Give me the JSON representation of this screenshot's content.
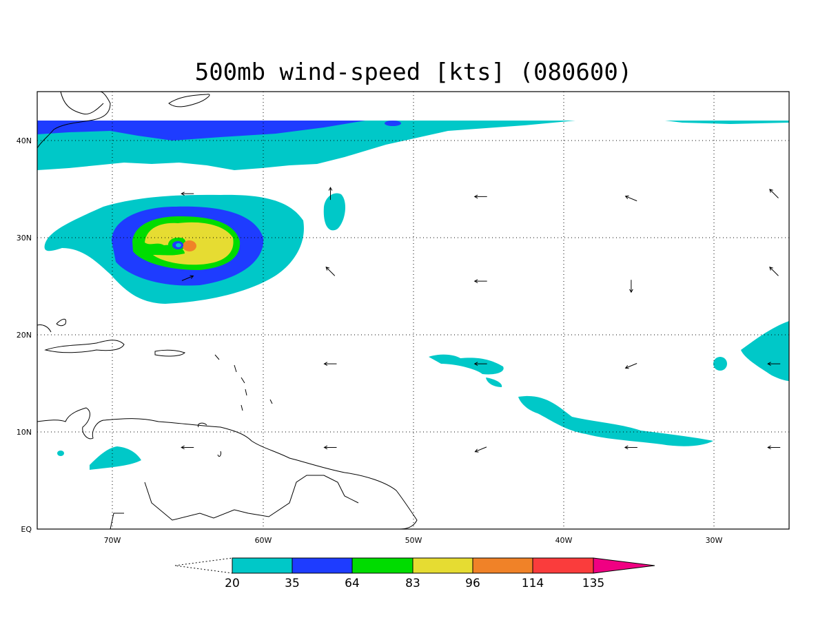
{
  "title": "500mb wind-speed [kts] (080600)",
  "map": {
    "lon_range": [
      -75,
      -25
    ],
    "lat_range": [
      0,
      45
    ],
    "x_ticks": [
      {
        "lon": -70,
        "label": "70W"
      },
      {
        "lon": -60,
        "label": "60W"
      },
      {
        "lon": -50,
        "label": "50W"
      },
      {
        "lon": -40,
        "label": "40W"
      },
      {
        "lon": -30,
        "label": "30W"
      }
    ],
    "y_ticks": [
      {
        "lat": 0,
        "label": "EQ"
      },
      {
        "lat": 10,
        "label": "10N"
      },
      {
        "lat": 20,
        "label": "20N"
      },
      {
        "lat": 30,
        "label": "30N"
      },
      {
        "lat": 40,
        "label": "40N"
      }
    ],
    "grid": true
  },
  "colorbar": {
    "levels": [
      "20",
      "35",
      "64",
      "83",
      "96",
      "114",
      "135"
    ],
    "colors": [
      "#00c8c8",
      "#1e3cff",
      "#00dc00",
      "#e6dc32",
      "#f08228",
      "#fa3c3c",
      "#f00082"
    ]
  },
  "wind_vectors": [
    {
      "lon": -65,
      "lat": 34.5,
      "dir": "W"
    },
    {
      "lon": -55.5,
      "lat": 34.5,
      "dir": "N"
    },
    {
      "lon": -45.5,
      "lat": 34.2,
      "dir": "W"
    },
    {
      "lon": -35.5,
      "lat": 34,
      "dir": "WNW"
    },
    {
      "lon": -26,
      "lat": 34.5,
      "dir": "NW"
    },
    {
      "lon": -55.5,
      "lat": 26.5,
      "dir": "NW"
    },
    {
      "lon": -45.5,
      "lat": 25.5,
      "dir": "W"
    },
    {
      "lon": -35.5,
      "lat": 25,
      "dir": "S"
    },
    {
      "lon": -26,
      "lat": 26.5,
      "dir": "NW"
    },
    {
      "lon": -65,
      "lat": 25.8,
      "dir": "ENE"
    },
    {
      "lon": -55.5,
      "lat": 17,
      "dir": "W"
    },
    {
      "lon": -45.5,
      "lat": 17,
      "dir": "W"
    },
    {
      "lon": -35.5,
      "lat": 16.8,
      "dir": "WSW"
    },
    {
      "lon": -26,
      "lat": 17,
      "dir": "W"
    },
    {
      "lon": -65,
      "lat": 8.4,
      "dir": "W"
    },
    {
      "lon": -55.5,
      "lat": 8.4,
      "dir": "W"
    },
    {
      "lon": -45.5,
      "lat": 8.2,
      "dir": "WSW"
    },
    {
      "lon": -35.5,
      "lat": 8.4,
      "dir": "W"
    },
    {
      "lon": -26,
      "lat": 8.4,
      "dir": "W"
    }
  ]
}
